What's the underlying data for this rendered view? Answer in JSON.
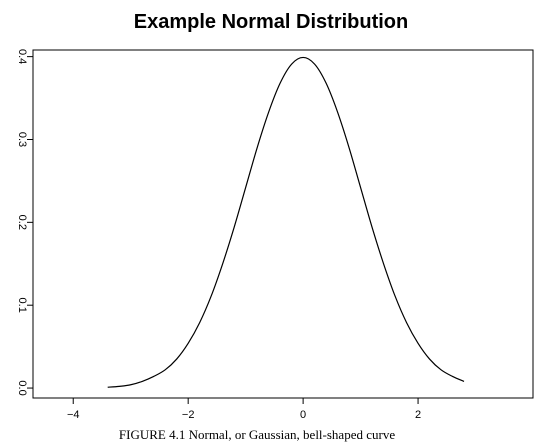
{
  "chart_data": {
    "type": "line",
    "title": "Example Normal Distribution",
    "xlabel": "",
    "ylabel": "",
    "xlim": [
      -4.7,
      4.0
    ],
    "ylim": [
      -0.012,
      0.408
    ],
    "x_ticks": [
      -4,
      -2,
      0,
      2
    ],
    "x_tick_labels": [
      "−4",
      "−2",
      "0",
      "2"
    ],
    "y_ticks": [
      0.0,
      0.1,
      0.2,
      0.3,
      0.4
    ],
    "y_tick_labels": [
      "0.0",
      "0.1",
      "0.2",
      "0.3",
      "0.4"
    ],
    "grid": false,
    "legend": "none",
    "series": [
      {
        "x": [
          -3.4,
          -3.2,
          -3.0,
          -2.8,
          -2.6,
          -2.4,
          -2.2,
          -2.0,
          -1.8,
          -1.6,
          -1.4,
          -1.2,
          -1.0,
          -0.8,
          -0.6,
          -0.4,
          -0.2,
          0.0,
          0.2,
          0.4,
          0.6,
          0.8,
          1.0,
          1.2,
          1.4,
          1.6,
          1.8,
          2.0,
          2.2,
          2.4,
          2.6,
          2.8
        ],
        "y": [
          0.001,
          0.002,
          0.004,
          0.008,
          0.014,
          0.022,
          0.035,
          0.054,
          0.079,
          0.111,
          0.15,
          0.194,
          0.242,
          0.29,
          0.333,
          0.368,
          0.391,
          0.399,
          0.391,
          0.368,
          0.333,
          0.29,
          0.242,
          0.194,
          0.15,
          0.111,
          0.079,
          0.054,
          0.035,
          0.022,
          0.014,
          0.008
        ],
        "color": "#000000"
      }
    ]
  },
  "caption": "FIGURE 4.1 Normal, or Gaussian, bell-shaped curve"
}
